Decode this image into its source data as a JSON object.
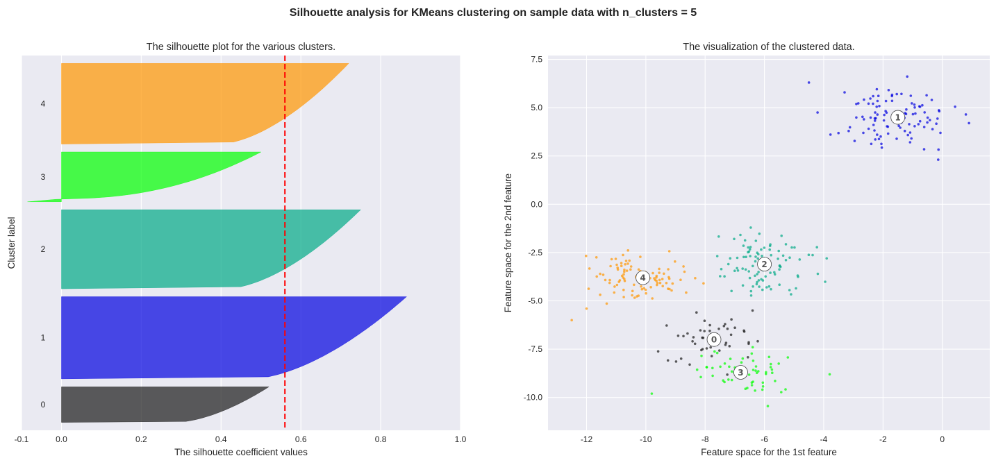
{
  "figure": {
    "suptitle": "Silhouette analysis for KMeans clustering on sample data with n_clusters = 5"
  },
  "chart_data": [
    {
      "type": "silhouette",
      "title": "The silhouette plot for the various clusters.",
      "xlabel": "The silhouette coefficient values",
      "ylabel": "Cluster label",
      "xlim": [
        -0.1,
        1.0
      ],
      "xticks": [
        "-0.1",
        "0.0",
        "0.2",
        "0.4",
        "0.6",
        "0.8",
        "1.0"
      ],
      "xtick_values": [
        -0.1,
        0.0,
        0.2,
        0.4,
        0.6,
        0.8,
        1.0
      ],
      "average_silhouette": 0.56,
      "average_line_color": "#ff0000",
      "clusters": [
        {
          "label": "0",
          "color": "#1a1a1a",
          "max": 0.52,
          "min": 0.0,
          "size": 45
        },
        {
          "label": "1",
          "color": "#0000e0",
          "max": 0.865,
          "min": 0.0,
          "size": 104
        },
        {
          "label": "2",
          "color": "#00a986",
          "max": 0.75,
          "min": 0.0,
          "size": 100
        },
        {
          "label": "3",
          "color": "#00ff00",
          "max": 0.5,
          "min": -0.085,
          "size": 63
        },
        {
          "label": "4",
          "color": "#ff9500",
          "max": 0.72,
          "min": 0.0,
          "size": 102
        }
      ]
    },
    {
      "type": "scatter",
      "title": "The visualization of the clustered data.",
      "xlabel": "Feature space for the 1st feature",
      "ylabel": "Feature space for the 2nd feature",
      "xlim": [
        -13.3,
        1.6
      ],
      "ylim": [
        -11.7,
        7.7
      ],
      "xticks": [
        "-12",
        "-10",
        "-8",
        "-6",
        "-4",
        "-2",
        "0"
      ],
      "xtick_values": [
        -12,
        -10,
        -8,
        -6,
        -4,
        -2,
        0
      ],
      "yticks": [
        "7.5",
        "5.0",
        "2.5",
        "0.0",
        "-2.5",
        "-5.0",
        "-7.5",
        "-10.0"
      ],
      "ytick_values": [
        7.5,
        5.0,
        2.5,
        0.0,
        -2.5,
        -5.0,
        -7.5,
        -10.0
      ],
      "clusters": [
        {
          "label": "0",
          "color": "#1a1a1a",
          "center": [
            -7.7,
            -7.0
          ],
          "spread": [
            0.75,
            0.7
          ],
          "n": 45
        },
        {
          "label": "1",
          "color": "#0000e0",
          "center": [
            -1.5,
            4.5
          ],
          "spread": [
            0.9,
            0.85
          ],
          "n": 104
        },
        {
          "label": "2",
          "color": "#00a986",
          "center": [
            -6.0,
            -3.1
          ],
          "spread": [
            0.8,
            0.75
          ],
          "n": 100
        },
        {
          "label": "3",
          "color": "#00ff00",
          "center": [
            -6.8,
            -8.7
          ],
          "spread": [
            0.8,
            0.6
          ],
          "n": 63
        },
        {
          "label": "4",
          "color": "#ff9500",
          "center": [
            -10.1,
            -3.8
          ],
          "spread": [
            0.85,
            0.65
          ],
          "n": 102
        }
      ],
      "outliers": [
        {
          "cluster": "1",
          "x": -4.5,
          "y": 6.3
        },
        {
          "cluster": "1",
          "x": 0.9,
          "y": 4.2
        },
        {
          "cluster": "2",
          "x": -3.9,
          "y": -2.8
        },
        {
          "cluster": "2",
          "x": -4.2,
          "y": -3.6
        },
        {
          "cluster": "3",
          "x": -3.8,
          "y": -8.8
        },
        {
          "cluster": "3",
          "x": -9.8,
          "y": -9.8
        },
        {
          "cluster": "4",
          "x": -12.5,
          "y": -6.0
        },
        {
          "cluster": "4",
          "x": -12.0,
          "y": -5.4
        },
        {
          "cluster": "0",
          "x": -6.4,
          "y": -5.5
        }
      ]
    }
  ]
}
